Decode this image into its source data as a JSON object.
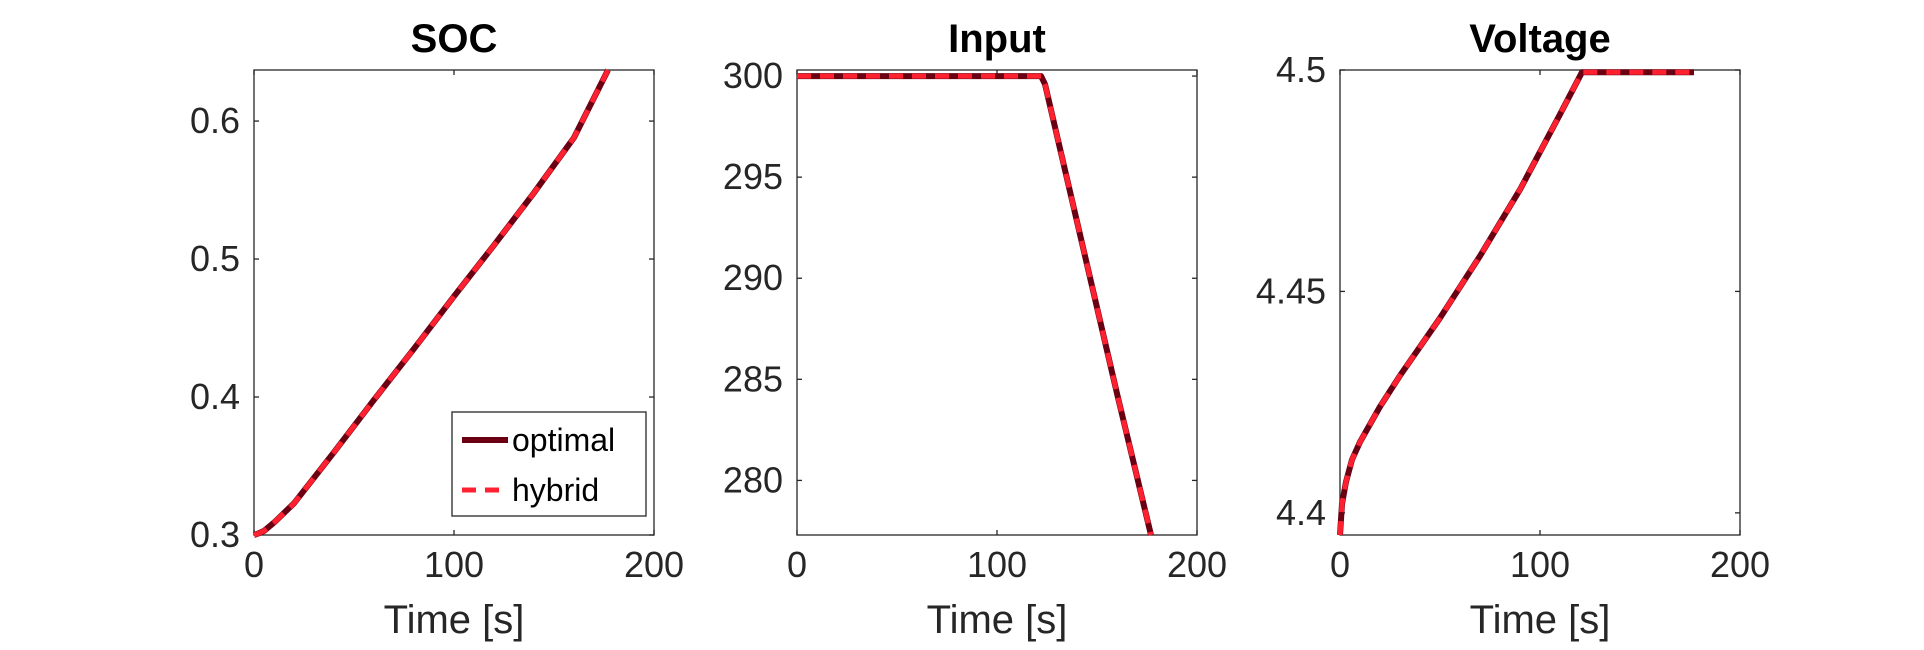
{
  "colors": {
    "optimal": "#6b0013",
    "hybrid": "#ff2030",
    "axis": "#262626"
  },
  "chart_data": [
    {
      "type": "line",
      "title": "SOC",
      "xlabel": "Time [s]",
      "ylabel": "",
      "xlim": [
        0,
        200
      ],
      "ylim": [
        0.3,
        0.637
      ],
      "xticks": [
        0,
        100,
        200
      ],
      "xtick_labels": [
        "0",
        "100",
        "200"
      ],
      "yticks": [
        0.3,
        0.4,
        0.5,
        0.6
      ],
      "ytick_labels": [
        "0.3",
        "0.4",
        "0.5",
        "0.6"
      ],
      "legend": {
        "placement": "bottom-right",
        "entries": [
          "optimal",
          "hybrid"
        ]
      },
      "series": [
        {
          "name": "optimal",
          "style": "solid",
          "x": [
            0,
            2,
            5,
            10,
            20,
            40,
            60,
            80,
            100,
            120,
            140,
            160,
            177
          ],
          "y": [
            0.3,
            0.301,
            0.303,
            0.309,
            0.323,
            0.36,
            0.398,
            0.435,
            0.473,
            0.51,
            0.548,
            0.588,
            0.637
          ]
        },
        {
          "name": "hybrid",
          "style": "dashed",
          "x": [
            0,
            2,
            5,
            10,
            20,
            40,
            60,
            80,
            100,
            120,
            140,
            160,
            177
          ],
          "y": [
            0.3,
            0.301,
            0.303,
            0.309,
            0.323,
            0.36,
            0.398,
            0.435,
            0.473,
            0.51,
            0.548,
            0.588,
            0.637
          ]
        }
      ]
    },
    {
      "type": "line",
      "title": "Input",
      "xlabel": "Time [s]",
      "ylabel": "",
      "xlim": [
        0,
        200
      ],
      "ylim": [
        277.3,
        300.3
      ],
      "xticks": [
        0,
        100,
        200
      ],
      "xtick_labels": [
        "0",
        "100",
        "200"
      ],
      "yticks": [
        280,
        285,
        290,
        295,
        300
      ],
      "ytick_labels": [
        "280",
        "285",
        "290",
        "295",
        "300"
      ],
      "series": [
        {
          "name": "optimal",
          "style": "solid",
          "x": [
            0,
            60,
            122,
            124,
            140,
            160,
            177
          ],
          "y": [
            300,
            300,
            300,
            299.6,
            292.8,
            284.3,
            277.3
          ]
        },
        {
          "name": "hybrid",
          "style": "dashed",
          "x": [
            0,
            60,
            122,
            124,
            140,
            160,
            177
          ],
          "y": [
            300,
            300,
            300,
            299.6,
            292.8,
            284.3,
            277.3
          ]
        }
      ]
    },
    {
      "type": "line",
      "title": "Voltage",
      "xlabel": "Time [s]",
      "ylabel": "",
      "xlim": [
        0,
        200
      ],
      "ylim": [
        4.395,
        4.5
      ],
      "xticks": [
        0,
        100,
        200
      ],
      "xtick_labels": [
        "0",
        "100",
        "200"
      ],
      "yticks": [
        4.4,
        4.45,
        4.5
      ],
      "ytick_labels": [
        "4.4",
        "4.45",
        "4.5"
      ],
      "series": [
        {
          "name": "optimal",
          "style": "solid",
          "x": [
            0,
            1,
            3,
            6,
            10,
            20,
            30,
            50,
            70,
            90,
            110,
            121,
            123,
            150,
            177
          ],
          "y": [
            4.395,
            4.402,
            4.407,
            4.412,
            4.416,
            4.424,
            4.431,
            4.444,
            4.458,
            4.473,
            4.49,
            4.4995,
            4.4995,
            4.4995,
            4.4995
          ]
        },
        {
          "name": "hybrid",
          "style": "dashed",
          "x": [
            0,
            1,
            3,
            6,
            10,
            20,
            30,
            50,
            70,
            90,
            110,
            121,
            123,
            150,
            177
          ],
          "y": [
            4.395,
            4.402,
            4.407,
            4.412,
            4.416,
            4.424,
            4.431,
            4.444,
            4.458,
            4.473,
            4.49,
            4.4995,
            4.4995,
            4.4995,
            4.4995
          ]
        }
      ]
    }
  ]
}
